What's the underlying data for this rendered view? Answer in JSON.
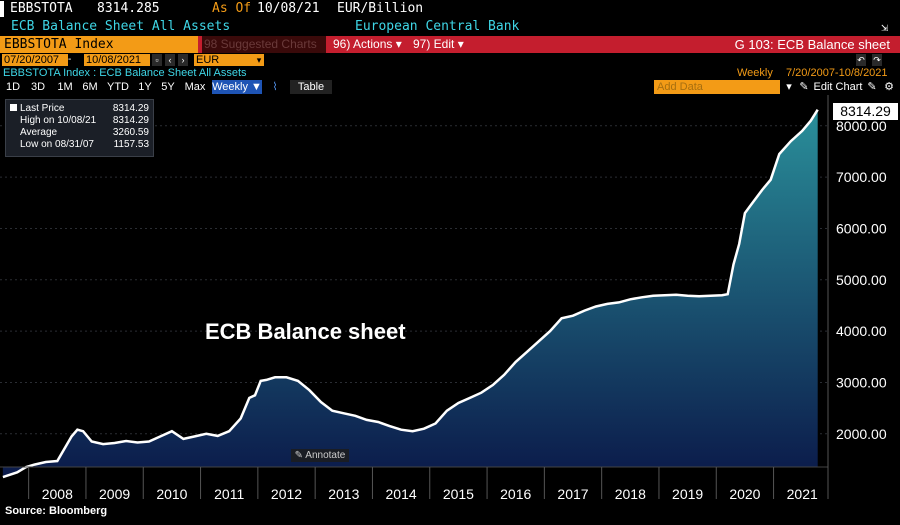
{
  "header": {
    "ticker": "EBBSTOTA",
    "value": "8314.285",
    "as_of_label": "As Of",
    "as_of_date": "10/08/21",
    "units": "EUR/Billion",
    "description": "ECB Balance Sheet All Assets",
    "source_name": "European Central Bank"
  },
  "toolbar": {
    "index_label": "EBBSTOTA Index",
    "suggested_label": "98 Suggested Charts",
    "actions_label": "96) Actions ▾",
    "edit_label": "97) Edit ▾",
    "function_title": "G 103: ECB Balance sheet",
    "start_date": "07/20/2007",
    "end_date": "10/08/2021",
    "currency": "EUR",
    "breadcrumb": "EBBSTOTA Index : ECB Balance Sheet All Assets",
    "frequency_label": "Weekly",
    "date_range": "7/20/2007-10/8/2021",
    "periods": [
      "1D",
      "3D",
      "1M",
      "6M",
      "YTD",
      "1Y",
      "5Y",
      "Max"
    ],
    "weekly_button": "Weekly ▼",
    "table_button": "Table",
    "add_data_placeholder": "Add Data",
    "edit_chart_label": "Edit Chart"
  },
  "legend": {
    "items": [
      {
        "label": "Last Price",
        "value": "8314.29"
      },
      {
        "label": "High on 10/08/21",
        "value": "8314.29"
      },
      {
        "label": "Average",
        "value": "3260.59"
      },
      {
        "label": "Low on 08/31/07",
        "value": "1157.53"
      }
    ]
  },
  "annotate_label": "Annotate",
  "source_text": "Source: Bloomberg",
  "last_value_label": "8314.29",
  "colors": {
    "accent_orange": "#f39b16",
    "toolbar_red": "#c41e2e",
    "cyan_text": "#3fd6e6",
    "area_top": "#2a8f9a",
    "area_bottom": "#0b1a4a",
    "line": "#ffffff"
  },
  "chart_data": {
    "type": "area",
    "title": "ECB Balance sheet",
    "ylim": [
      1100,
      8600
    ],
    "y_ticks": [
      "2000.00",
      "3000.00",
      "4000.00",
      "5000.00",
      "6000.00",
      "7000.00",
      "8000.00"
    ],
    "y_tick_values": [
      2000,
      3000,
      4000,
      5000,
      6000,
      7000,
      8000
    ],
    "x_tick_labels": [
      "2008",
      "2009",
      "2010",
      "2011",
      "2012",
      "2013",
      "2014",
      "2015",
      "2016",
      "2017",
      "2018",
      "2019",
      "2020",
      "2021"
    ],
    "grid": true,
    "series": [
      {
        "x": [
          2007.55,
          2007.8,
          2007.95,
          2008.1,
          2008.3,
          2008.5,
          2008.75,
          2008.85,
          2008.95,
          2009.1,
          2009.3,
          2009.5,
          2009.7,
          2009.9,
          2010.1,
          2010.3,
          2010.5,
          2010.7,
          2010.9,
          2011.1,
          2011.3,
          2011.5,
          2011.7,
          2011.85,
          2011.95,
          2012.05,
          2012.15,
          2012.3,
          2012.5,
          2012.7,
          2012.9,
          2013.1,
          2013.3,
          2013.5,
          2013.7,
          2013.9,
          2014.1,
          2014.3,
          2014.5,
          2014.7,
          2014.9,
          2015.1,
          2015.3,
          2015.5,
          2015.7,
          2015.9,
          2016.1,
          2016.3,
          2016.5,
          2016.7,
          2016.9,
          2017.1,
          2017.3,
          2017.5,
          2017.7,
          2017.9,
          2018.1,
          2018.3,
          2018.5,
          2018.7,
          2018.9,
          2019.1,
          2019.3,
          2019.5,
          2019.7,
          2019.9,
          2020.1,
          2020.2,
          2020.3,
          2020.4,
          2020.5,
          2020.6,
          2020.8,
          2020.95,
          2021.1,
          2021.3,
          2021.5,
          2021.65,
          2021.77
        ],
        "y": [
          1158,
          1250,
          1350,
          1400,
          1450,
          1470,
          1950,
          2080,
          2050,
          1850,
          1800,
          1820,
          1860,
          1830,
          1850,
          1950,
          2050,
          1900,
          1950,
          2000,
          1960,
          2050,
          2300,
          2700,
          2750,
          3030,
          3050,
          3100,
          3100,
          3030,
          2850,
          2620,
          2450,
          2400,
          2350,
          2270,
          2230,
          2150,
          2080,
          2050,
          2100,
          2200,
          2450,
          2600,
          2700,
          2800,
          2950,
          3150,
          3400,
          3600,
          3800,
          4000,
          4250,
          4300,
          4400,
          4480,
          4530,
          4560,
          4620,
          4660,
          4690,
          4700,
          4710,
          4690,
          4680,
          4690,
          4700,
          4720,
          5300,
          5700,
          6300,
          6450,
          6750,
          6950,
          7450,
          7700,
          7900,
          8100,
          8314
        ]
      }
    ]
  }
}
